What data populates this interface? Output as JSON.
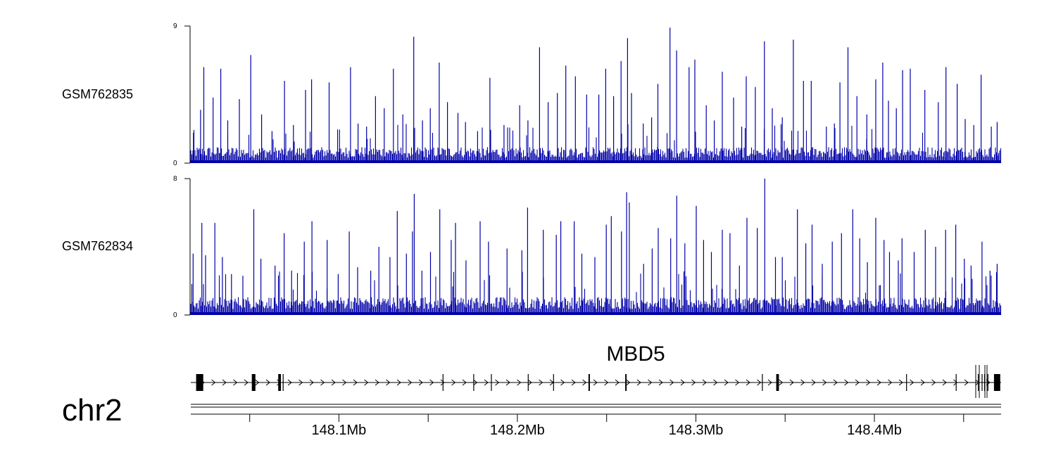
{
  "chart_data": {
    "type": "area",
    "chromosome": "chr2",
    "x_axis": {
      "unit": "Mb",
      "range": [
        148.017,
        148.471
      ],
      "tick_values": [
        148.1,
        148.2,
        148.3,
        148.4
      ],
      "tick_labels": [
        "148.1Mb",
        "148.2Mb",
        "148.3Mb",
        "148.4Mb"
      ],
      "minor_tick_values": [
        148.05,
        148.15,
        148.25,
        148.35,
        148.45
      ]
    },
    "tracks": [
      {
        "name": "GSM762835",
        "color": "#0000a8",
        "ylim": [
          0,
          9
        ],
        "ymin_label": "0",
        "ymax_label": "9",
        "peaks": [
          [
            148.0185,
            2.0
          ],
          [
            148.0225,
            3.5
          ],
          [
            148.0243,
            6.3
          ],
          [
            148.0295,
            4.3
          ],
          [
            148.0338,
            6.2
          ],
          [
            148.0377,
            2.8
          ],
          [
            148.0442,
            4.2
          ],
          [
            148.0506,
            7.1
          ],
          [
            148.0567,
            3.2
          ],
          [
            148.0625,
            2.1
          ],
          [
            148.0695,
            5.4
          ],
          [
            148.0745,
            2.5
          ],
          [
            148.0813,
            4.8
          ],
          [
            148.0847,
            5.5
          ],
          [
            148.0945,
            5.3
          ],
          [
            148.1003,
            2.2
          ],
          [
            148.1065,
            6.3
          ],
          [
            148.1107,
            2.6
          ],
          [
            148.1155,
            2.4
          ],
          [
            148.1205,
            4.4
          ],
          [
            148.1254,
            3.6
          ],
          [
            148.1305,
            6.2
          ],
          [
            148.1358,
            3.2
          ],
          [
            148.1419,
            8.3
          ],
          [
            148.1468,
            2.8
          ],
          [
            148.1512,
            3.6
          ],
          [
            148.1562,
            6.6
          ],
          [
            148.1608,
            4.0
          ],
          [
            148.1667,
            3.3
          ],
          [
            148.1709,
            2.7
          ],
          [
            148.1777,
            2.1
          ],
          [
            148.1846,
            5.6
          ],
          [
            148.1925,
            2.5
          ],
          [
            148.2013,
            3.8
          ],
          [
            148.2059,
            2.8
          ],
          [
            148.2124,
            7.6
          ],
          [
            148.2172,
            4.0
          ],
          [
            148.2224,
            4.6
          ],
          [
            148.2271,
            6.4
          ],
          [
            148.2325,
            5.7
          ],
          [
            148.2388,
            4.5
          ],
          [
            148.2456,
            4.5
          ],
          [
            148.2495,
            6.2
          ],
          [
            148.2539,
            4.4
          ],
          [
            148.2581,
            6.7
          ],
          [
            148.2617,
            8.2
          ],
          [
            148.2639,
            4.6
          ],
          [
            148.2705,
            2.6
          ],
          [
            148.2752,
            3.0
          ],
          [
            148.2787,
            5.2
          ],
          [
            148.2855,
            8.9
          ],
          [
            148.2892,
            7.4
          ],
          [
            148.2962,
            6.3
          ],
          [
            148.2994,
            6.8
          ],
          [
            148.3058,
            3.8
          ],
          [
            148.3103,
            2.8
          ],
          [
            148.3148,
            6.0
          ],
          [
            148.3211,
            4.3
          ],
          [
            148.3257,
            2.4
          ],
          [
            148.3282,
            5.7
          ],
          [
            148.3333,
            5.0
          ],
          [
            148.3384,
            8.0
          ],
          [
            148.3428,
            3.6
          ],
          [
            148.3484,
            3.0
          ],
          [
            148.3546,
            8.1
          ],
          [
            148.3603,
            5.4
          ],
          [
            148.3646,
            5.4
          ],
          [
            148.3731,
            2.4
          ],
          [
            148.3776,
            2.6
          ],
          [
            148.3807,
            5.3
          ],
          [
            148.3852,
            7.6
          ],
          [
            148.3902,
            4.4
          ],
          [
            148.3958,
            3.2
          ],
          [
            148.4008,
            5.5
          ],
          [
            148.4047,
            6.6
          ],
          [
            148.4079,
            4.1
          ],
          [
            148.4123,
            3.6
          ],
          [
            148.4158,
            6.1
          ],
          [
            148.4201,
            6.2
          ],
          [
            148.4283,
            4.8
          ],
          [
            148.4358,
            4.0
          ],
          [
            148.4401,
            6.3
          ],
          [
            148.4464,
            5.2
          ],
          [
            148.4509,
            2.9
          ],
          [
            148.4557,
            2.5
          ],
          [
            148.4598,
            5.8
          ],
          [
            148.4655,
            2.4
          ],
          [
            148.4688,
            2.7
          ]
        ]
      },
      {
        "name": "GSM762834",
        "color": "#0000a8",
        "ylim": [
          0,
          8
        ],
        "ymin_label": "0",
        "ymax_label": "8",
        "peaks": [
          [
            148.0183,
            3.6
          ],
          [
            148.0232,
            5.4
          ],
          [
            148.0253,
            3.5
          ],
          [
            148.0305,
            5.4
          ],
          [
            148.0347,
            3.4
          ],
          [
            148.0398,
            2.4
          ],
          [
            148.0462,
            2.3
          ],
          [
            148.0523,
            6.2
          ],
          [
            148.0563,
            3.3
          ],
          [
            148.0642,
            2.9
          ],
          [
            148.0693,
            4.8
          ],
          [
            148.0735,
            2.6
          ],
          [
            148.0806,
            4.3
          ],
          [
            148.0849,
            5.5
          ],
          [
            148.0934,
            4.4
          ],
          [
            148.0996,
            2.4
          ],
          [
            148.1058,
            4.9
          ],
          [
            148.1105,
            2.8
          ],
          [
            148.1178,
            2.6
          ],
          [
            148.1224,
            4.0
          ],
          [
            148.1286,
            3.4
          ],
          [
            148.1327,
            6.1
          ],
          [
            148.1378,
            3.6
          ],
          [
            148.1412,
            4.9
          ],
          [
            148.1422,
            7.1
          ],
          [
            148.1465,
            2.6
          ],
          [
            148.1513,
            3.7
          ],
          [
            148.1565,
            6.2
          ],
          [
            148.1629,
            4.4
          ],
          [
            148.1653,
            5.4
          ],
          [
            148.1712,
            3.2
          ],
          [
            148.1791,
            5.5
          ],
          [
            148.1838,
            4.3
          ],
          [
            148.1942,
            3.9
          ],
          [
            148.2025,
            3.8
          ],
          [
            148.2057,
            6.3
          ],
          [
            148.2145,
            5.0
          ],
          [
            148.2218,
            4.7
          ],
          [
            148.2243,
            5.5
          ],
          [
            148.2318,
            5.5
          ],
          [
            148.2361,
            3.6
          ],
          [
            148.2434,
            3.4
          ],
          [
            148.2498,
            5.3
          ],
          [
            148.2526,
            5.8
          ],
          [
            148.2583,
            4.9
          ],
          [
            148.2612,
            7.2
          ],
          [
            148.2627,
            6.6
          ],
          [
            148.2707,
            3.0
          ],
          [
            148.2755,
            3.9
          ],
          [
            148.2789,
            5.1
          ],
          [
            148.2859,
            4.5
          ],
          [
            148.2893,
            7.0
          ],
          [
            148.2938,
            4.2
          ],
          [
            148.3002,
            6.4
          ],
          [
            148.3043,
            4.4
          ],
          [
            148.3087,
            3.7
          ],
          [
            148.3148,
            5.0
          ],
          [
            148.3191,
            4.8
          ],
          [
            148.3244,
            2.9
          ],
          [
            148.3286,
            5.7
          ],
          [
            148.3344,
            5.1
          ],
          [
            148.3386,
            8.0
          ],
          [
            148.3446,
            3.4
          ],
          [
            148.3484,
            3.4
          ],
          [
            148.3569,
            6.2
          ],
          [
            148.3616,
            4.2
          ],
          [
            148.3651,
            5.3
          ],
          [
            148.3708,
            3.0
          ],
          [
            148.3764,
            4.3
          ],
          [
            148.3816,
            4.8
          ],
          [
            148.3879,
            6.2
          ],
          [
            148.3918,
            4.5
          ],
          [
            148.3961,
            3.1
          ],
          [
            148.4008,
            5.7
          ],
          [
            148.4054,
            4.4
          ],
          [
            148.4085,
            3.7
          ],
          [
            148.4134,
            3.2
          ],
          [
            148.4155,
            4.5
          ],
          [
            148.4223,
            3.7
          ],
          [
            148.4285,
            5.0
          ],
          [
            148.4343,
            4.0
          ],
          [
            148.4399,
            5.0
          ],
          [
            148.4456,
            5.3
          ],
          [
            148.4504,
            3.3
          ],
          [
            148.4542,
            2.9
          ],
          [
            148.4603,
            4.3
          ],
          [
            148.4648,
            2.6
          ],
          [
            148.4688,
            3.0
          ]
        ]
      }
    ],
    "gene": {
      "name": "MBD5",
      "strand": "+",
      "start": 148.017,
      "end": 148.471,
      "exons": [
        [
          148.02,
          148.024
        ],
        [
          148.0512,
          148.0532
        ],
        [
          148.066,
          148.0675
        ],
        [
          148.0685,
          148.0688
        ],
        [
          148.1581,
          148.1584
        ],
        [
          148.1753,
          148.1756
        ],
        [
          148.1852,
          148.1855
        ],
        [
          148.2058,
          148.2061
        ],
        [
          148.22,
          148.2203
        ],
        [
          148.2398,
          148.2406
        ],
        [
          148.2604,
          148.2612
        ],
        [
          148.337,
          148.3373
        ],
        [
          148.345,
          148.3465
        ],
        [
          148.4178,
          148.4181
        ],
        [
          148.4456,
          148.4459
        ],
        [
          148.458,
          148.4583
        ],
        [
          148.4601,
          148.4604
        ],
        [
          148.4615,
          148.4618
        ],
        [
          148.4634,
          148.4637
        ],
        [
          148.467,
          148.4705
        ]
      ]
    }
  }
}
